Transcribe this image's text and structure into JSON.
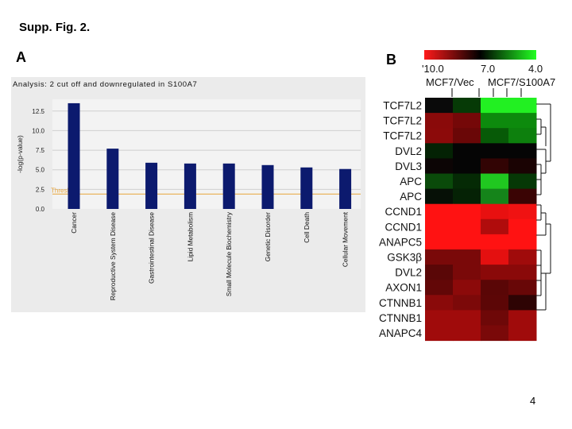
{
  "supp_title": "Supp. Fig. 2.",
  "panel_a_label": "A",
  "panel_b_label": "B",
  "page_number": "4",
  "chart_data": [
    {
      "type": "bar",
      "title": "Analysis: 2 cut off and downregulated in S100A7",
      "ylabel": "-log(p-value)",
      "xlabel": "",
      "ylim": [
        0,
        14
      ],
      "yticks": [
        "0.0",
        "2.5",
        "5.0",
        "7.5",
        "10.0",
        "12.5"
      ],
      "categories": [
        "Cancer",
        "Reproductive System Disease",
        "Gastrointestinal Disease",
        "Lipid Metabolism",
        "Small Molecule Biochemistry",
        "Genetic Disorder",
        "Cell Death",
        "Cellular Movement"
      ],
      "values": [
        13.5,
        7.7,
        5.9,
        5.8,
        5.8,
        5.6,
        5.3,
        5.1
      ],
      "threshold": {
        "label": "Threshold",
        "value": 1.9
      },
      "bar_color": "#0c1a6e",
      "threshold_color": "#e8a53a",
      "grid": true
    },
    {
      "type": "heatmap",
      "color_scale": {
        "labels": [
          "'10.0",
          "7.0",
          "4.0"
        ],
        "low_color": "#ff1a1a",
        "mid_color": "#000000",
        "high_color": "#22ff22"
      },
      "column_groups": [
        "MCF7/Vec",
        "MCF7/S100A7"
      ],
      "rows": [
        "TCF7L2",
        "TCF7L2",
        "TCF7L2",
        "DVL2",
        "DVL3",
        "APC",
        "APC",
        "CCND1",
        "CCND1",
        "ANAPC5",
        "GSK3β",
        "DVL2",
        "AXON1",
        "CTNNB1",
        "CTNNB1",
        "ANAPC4"
      ],
      "cell_colors": [
        [
          "#0a0a0a",
          "#063a06",
          "#22f022",
          "#22f022"
        ],
        [
          "#8a0a0a",
          "#750808",
          "#0d8a0d",
          "#0d8a0d"
        ],
        [
          "#8c0a0a",
          "#6a0707",
          "#075a07",
          "#0d800d"
        ],
        [
          "#042204",
          "#050505",
          "#050505",
          "#050505"
        ],
        [
          "#0c0505",
          "#050505",
          "#320404",
          "#1a0303"
        ],
        [
          "#0a4a0a",
          "#052a05",
          "#20c820",
          "#063806"
        ],
        [
          "#061006",
          "#052205",
          "#15841a",
          "#3a0404"
        ],
        [
          "#ff1212",
          "#ff1212",
          "#e81010",
          "#f01212"
        ],
        [
          "#ff1212",
          "#ff1212",
          "#b00c0c",
          "#ff1212"
        ],
        [
          "#ff1212",
          "#ff1212",
          "#ff1212",
          "#ff1212"
        ],
        [
          "#7a0909",
          "#7a0909",
          "#e41010",
          "#a00b0b"
        ],
        [
          "#5a0707",
          "#7a0909",
          "#8a0909",
          "#8a0909"
        ],
        [
          "#620707",
          "#8c0a0a",
          "#5a0606",
          "#680707"
        ],
        [
          "#8a0a0a",
          "#7c0909",
          "#5c0606",
          "#2e0404"
        ],
        [
          "#a00b0b",
          "#a00b0b",
          "#6e0808",
          "#a00b0b"
        ],
        [
          "#a00b0b",
          "#a00b0b",
          "#7a0909",
          "#a00b0b"
        ]
      ]
    }
  ]
}
